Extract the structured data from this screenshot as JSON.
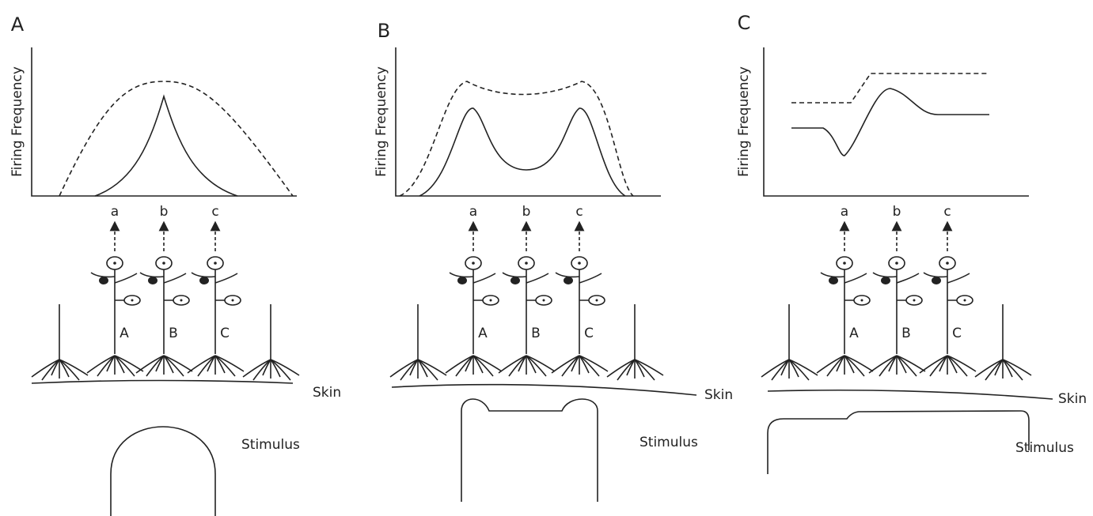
{
  "panels": [
    {
      "letter": "A",
      "y_axis_label": "Firing Frequency",
      "outputs": [
        "a",
        "b",
        "c"
      ],
      "cells": [
        "A",
        "B",
        "C"
      ],
      "skin_label": "Skin",
      "stimulus_label": "Stimulus"
    },
    {
      "letter": "B",
      "y_axis_label": "Firing Frequency",
      "outputs": [
        "a",
        "b",
        "c"
      ],
      "cells": [
        "A",
        "B",
        "C"
      ],
      "skin_label": "Skin",
      "stimulus_label": "Stimulus"
    },
    {
      "letter": "C",
      "y_axis_label": "Firing Frequency",
      "outputs": [
        "a",
        "b",
        "c"
      ],
      "cells": [
        "A",
        "B",
        "C"
      ],
      "skin_label": "Skin",
      "stimulus_label": "Stimulus"
    }
  ]
}
